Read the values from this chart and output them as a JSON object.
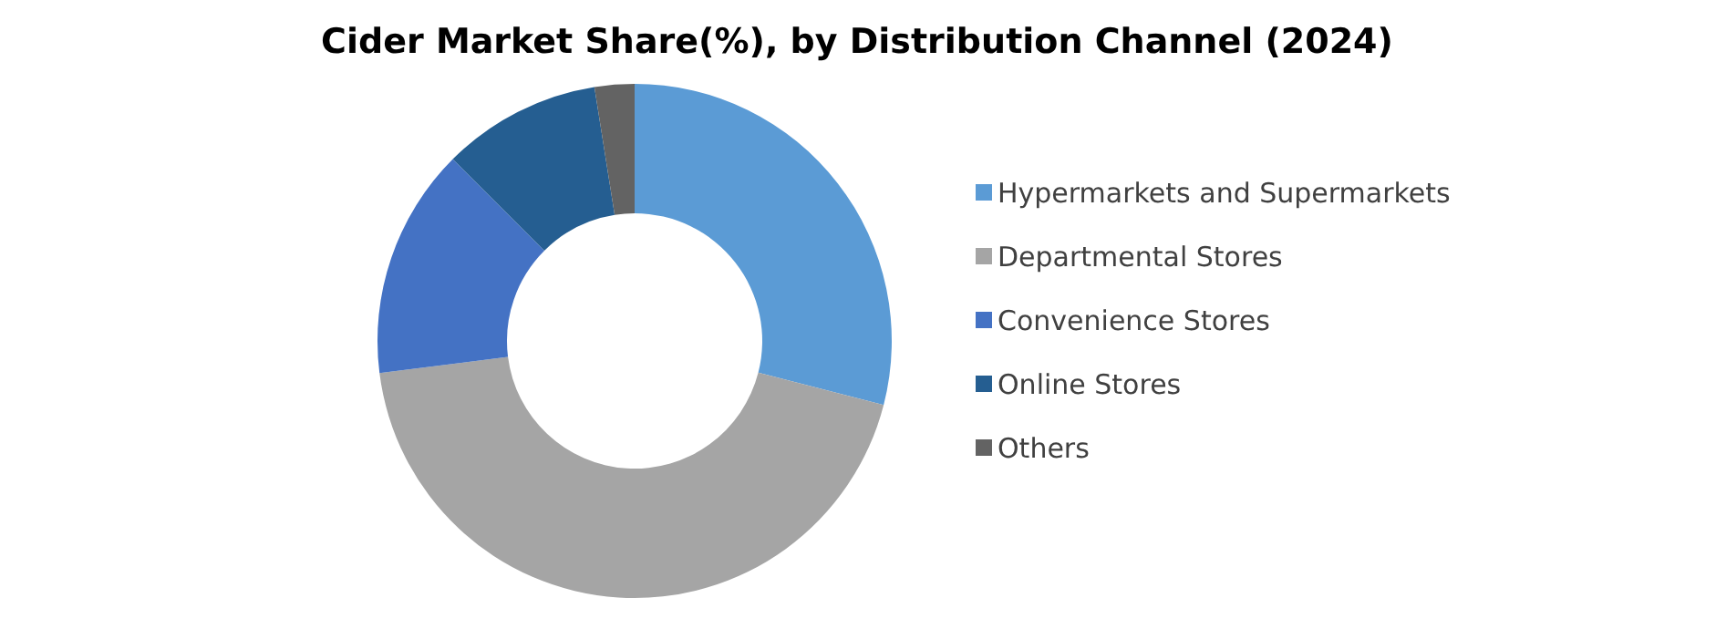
{
  "chart_data": {
    "type": "donut",
    "title": "Cider Market Share(%), by Distribution Channel (2024)",
    "categories": [
      "Hypermarkets and Supermarkets",
      "Departmental Stores",
      "Convenience Stores",
      "Online Stores",
      "Others"
    ],
    "values": [
      29,
      44,
      14.5,
      10,
      2.5
    ],
    "colors": [
      "#5b9bd5",
      "#a5a5a5",
      "#4472c4",
      "#255e91",
      "#636363"
    ],
    "legend": "right"
  }
}
